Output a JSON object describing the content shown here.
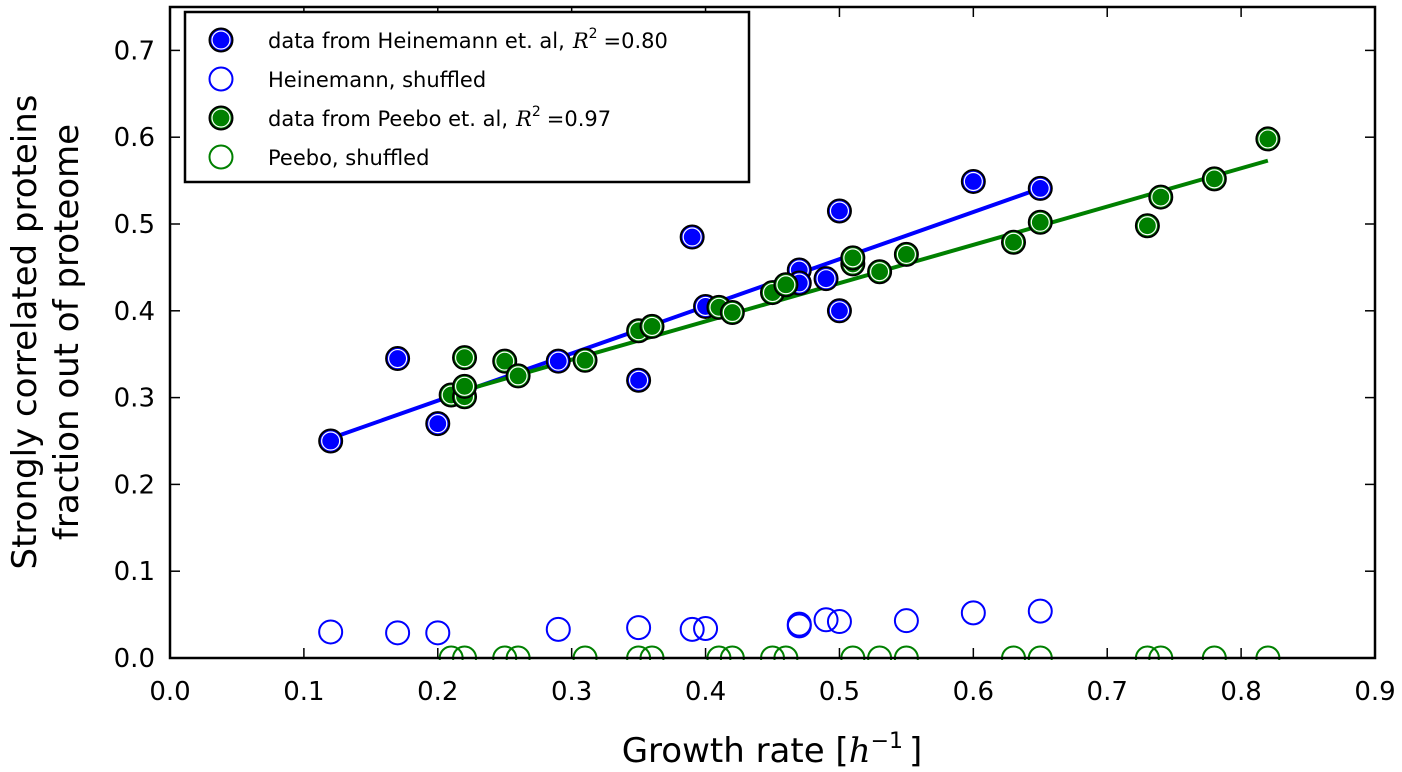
{
  "chart_data": {
    "type": "scatter",
    "xlabel": "Growth rate [",
    "xlabel_math": "h",
    "xlabel_exp": "−1",
    "xlabel_end": "]",
    "ylabel_line1": "Strongly correlated proteins",
    "ylabel_line2": "fraction out of proteome",
    "xlim": [
      0.0,
      0.9
    ],
    "ylim": [
      0.0,
      0.75
    ],
    "xticks": [
      0.0,
      0.1,
      0.2,
      0.3,
      0.4,
      0.5,
      0.6,
      0.7,
      0.8,
      0.9
    ],
    "xtick_labels": [
      "0.0",
      "0.1",
      "0.2",
      "0.3",
      "0.4",
      "0.5",
      "0.6",
      "0.7",
      "0.8",
      "0.9"
    ],
    "yticks": [
      0.0,
      0.1,
      0.2,
      0.3,
      0.4,
      0.5,
      0.6,
      0.7
    ],
    "ytick_labels": [
      "0.0",
      "0.1",
      "0.2",
      "0.3",
      "0.4",
      "0.5",
      "0.6",
      "0.7"
    ],
    "grid": false,
    "legend_position": "top-left",
    "series": [
      {
        "name": "data from Heinemann et. al,",
        "r2_value": "=0.80",
        "style": "filled",
        "color": "#0000ff",
        "fit": {
          "x": [
            0.12,
            0.65
          ],
          "y": [
            0.253,
            0.541
          ]
        },
        "x": [
          0.12,
          0.17,
          0.2,
          0.29,
          0.35,
          0.39,
          0.4,
          0.47,
          0.47,
          0.49,
          0.5,
          0.5,
          0.6,
          0.65
        ],
        "y": [
          0.25,
          0.345,
          0.27,
          0.342,
          0.32,
          0.485,
          0.405,
          0.447,
          0.432,
          0.437,
          0.4,
          0.515,
          0.549,
          0.541
        ]
      },
      {
        "name": "Heinemann, shuffled",
        "style": "open",
        "color": "#0000ff",
        "x": [
          0.12,
          0.17,
          0.2,
          0.29,
          0.35,
          0.39,
          0.4,
          0.47,
          0.47,
          0.49,
          0.5,
          0.55,
          0.6,
          0.65
        ],
        "y": [
          0.03,
          0.029,
          0.029,
          0.033,
          0.035,
          0.033,
          0.034,
          0.037,
          0.039,
          0.044,
          0.042,
          0.043,
          0.052,
          0.054
        ]
      },
      {
        "name": "data from Peebo et. al,",
        "r2_value": "=0.97",
        "style": "filled",
        "color": "#008000",
        "fit": {
          "x": [
            0.21,
            0.82
          ],
          "y": [
            0.304,
            0.573
          ]
        },
        "x": [
          0.21,
          0.22,
          0.22,
          0.22,
          0.25,
          0.26,
          0.31,
          0.35,
          0.36,
          0.41,
          0.42,
          0.45,
          0.46,
          0.51,
          0.51,
          0.53,
          0.55,
          0.63,
          0.65,
          0.73,
          0.74,
          0.78,
          0.82
        ],
        "y": [
          0.303,
          0.301,
          0.313,
          0.346,
          0.342,
          0.325,
          0.343,
          0.377,
          0.382,
          0.404,
          0.398,
          0.421,
          0.43,
          0.454,
          0.461,
          0.445,
          0.465,
          0.479,
          0.502,
          0.498,
          0.531,
          0.552,
          0.598
        ]
      },
      {
        "name": "Peebo, shuffled",
        "style": "open",
        "color": "#008000",
        "x": [
          0.21,
          0.22,
          0.25,
          0.26,
          0.31,
          0.35,
          0.36,
          0.41,
          0.42,
          0.45,
          0.46,
          0.51,
          0.53,
          0.55,
          0.63,
          0.65,
          0.73,
          0.74,
          0.78,
          0.82
        ],
        "y": [
          0.0,
          0.0,
          0.0,
          0.0,
          0.0,
          0.0,
          0.0,
          0.0,
          0.0,
          0.0,
          0.0,
          0.0,
          0.0,
          0.0,
          0.0,
          0.0,
          0.0,
          0.0,
          0.0,
          0.0
        ]
      }
    ],
    "r2_symbol": "R",
    "r2_exp": "2"
  }
}
